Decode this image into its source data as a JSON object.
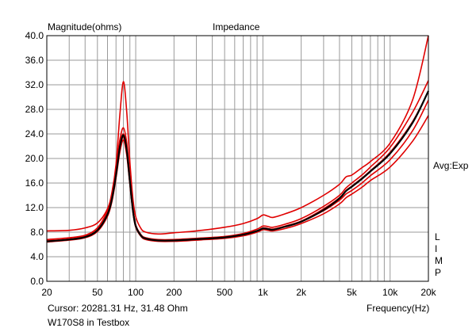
{
  "chart_data": {
    "type": "line",
    "title": "Impedance",
    "ylabel": "Magnitude(ohms)",
    "xlabel": "Frequency(Hz)",
    "x_scale": "log",
    "xlim": [
      20,
      20000
    ],
    "ylim": [
      0,
      40
    ],
    "grid": true,
    "y_ticks": [
      0,
      4,
      8,
      12,
      16,
      20,
      24,
      28,
      32,
      36,
      40
    ],
    "y_tick_labels": [
      "0.0",
      "4.0",
      "8.0",
      "12.0",
      "16.0",
      "20.0",
      "24.0",
      "28.0",
      "32.0",
      "36.0",
      "40.0"
    ],
    "x_ticks": [
      20,
      50,
      100,
      200,
      500,
      1000,
      2000,
      5000,
      10000,
      20000
    ],
    "x_tick_labels": [
      "20",
      "50",
      "100",
      "200",
      "500",
      "1k",
      "2k",
      "5k",
      "10k",
      "20k"
    ],
    "x": [
      20,
      30,
      40,
      50,
      60,
      65,
      70,
      75,
      80,
      85,
      90,
      95,
      100,
      110,
      120,
      150,
      200,
      300,
      500,
      700,
      900,
      1000,
      1100,
      1200,
      1500,
      2000,
      3000,
      4000,
      4500,
      5000,
      6000,
      7000,
      10000,
      15000,
      20000
    ],
    "series": [
      {
        "color": "#e00000",
        "values": [
          8.2,
          8.3,
          8.7,
          9.5,
          11.8,
          14.5,
          19.0,
          27.0,
          32.5,
          27.5,
          19.5,
          13.5,
          10.5,
          8.6,
          8.0,
          7.7,
          7.9,
          8.2,
          8.8,
          9.4,
          10.2,
          10.8,
          10.6,
          10.4,
          11.0,
          12.0,
          14.0,
          15.8,
          17.0,
          17.3,
          18.5,
          19.5,
          22.5,
          29.5,
          40.0
        ]
      },
      {
        "color": "#e00000",
        "values": [
          6.8,
          7.1,
          7.5,
          8.7,
          11.5,
          14.0,
          18.5,
          23.0,
          25.0,
          22.5,
          17.0,
          12.0,
          9.2,
          7.6,
          7.1,
          6.8,
          6.8,
          7.0,
          7.3,
          7.8,
          8.5,
          9.0,
          8.9,
          8.8,
          9.3,
          10.2,
          12.2,
          14.0,
          15.2,
          16.0,
          17.3,
          18.6,
          21.8,
          27.5,
          32.7
        ]
      },
      {
        "color": "#e00000",
        "values": [
          6.5,
          6.8,
          7.2,
          8.2,
          10.8,
          13.2,
          17.0,
          21.5,
          23.5,
          21.0,
          16.0,
          11.5,
          8.9,
          7.4,
          6.9,
          6.6,
          6.6,
          6.8,
          7.1,
          7.6,
          8.2,
          8.6,
          8.5,
          8.4,
          8.9,
          9.8,
          11.8,
          13.6,
          14.8,
          15.5,
          16.8,
          18.0,
          21.0,
          26.0,
          31.0
        ]
      },
      {
        "color": "#e00000",
        "values": [
          6.6,
          6.9,
          7.3,
          8.4,
          11.0,
          13.5,
          17.5,
          22.0,
          24.0,
          21.5,
          16.5,
          11.8,
          9.0,
          7.5,
          7.0,
          6.7,
          6.7,
          6.9,
          7.2,
          7.6,
          8.2,
          8.7,
          8.6,
          8.5,
          9.0,
          9.8,
          11.5,
          13.2,
          14.2,
          14.8,
          16.0,
          17.2,
          19.8,
          24.5,
          29.5
        ]
      },
      {
        "color": "#e00000",
        "values": [
          6.4,
          6.7,
          7.1,
          8.1,
          10.6,
          13.0,
          16.8,
          21.0,
          23.0,
          20.5,
          15.8,
          11.3,
          8.8,
          7.3,
          6.8,
          6.5,
          6.5,
          6.7,
          7.0,
          7.4,
          8.0,
          8.4,
          8.3,
          8.2,
          8.6,
          9.4,
          11.0,
          12.6,
          13.6,
          14.2,
          15.3,
          16.4,
          18.6,
          22.8,
          27.0
        ]
      },
      {
        "color": "#000000",
        "values": [
          6.5,
          6.8,
          7.2,
          8.3,
          10.9,
          13.4,
          17.3,
          21.8,
          23.8,
          21.3,
          16.3,
          11.6,
          9.0,
          7.45,
          6.95,
          6.65,
          6.65,
          6.85,
          7.15,
          7.6,
          8.2,
          8.6,
          8.5,
          8.4,
          8.9,
          9.7,
          11.6,
          13.5,
          14.7,
          15.4,
          16.7,
          17.9,
          20.8,
          25.8,
          31.0
        ]
      }
    ],
    "right_labels": {
      "avg": "Avg:Exp",
      "vertical": [
        "L",
        "I",
        "M",
        "P"
      ]
    },
    "footer": {
      "cursor": "Cursor: 20281.31 Hz, 31.48 Ohm",
      "name": "W170S8 in Testbox"
    }
  }
}
